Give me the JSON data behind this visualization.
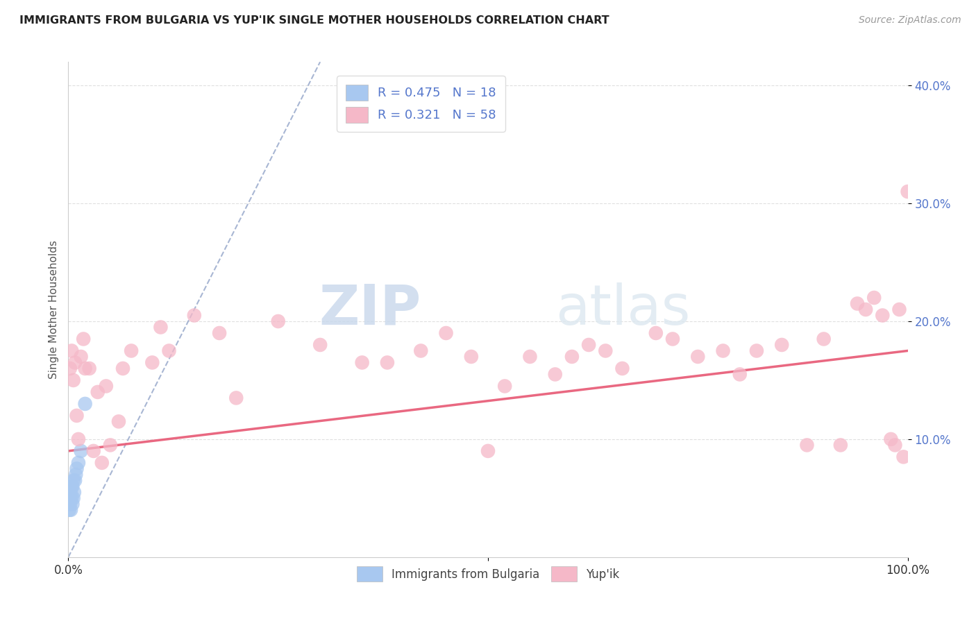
{
  "title": "IMMIGRANTS FROM BULGARIA VS YUP'IK SINGLE MOTHER HOUSEHOLDS CORRELATION CHART",
  "source_text": "Source: ZipAtlas.com",
  "ylabel": "Single Mother Households",
  "xlim": [
    0,
    1.0
  ],
  "ylim": [
    0,
    0.42
  ],
  "xtick_positions": [
    0.0,
    0.5,
    1.0
  ],
  "xtick_labels": [
    "0.0%",
    "",
    "100.0%"
  ],
  "ytick_positions": [
    0.1,
    0.2,
    0.3,
    0.4
  ],
  "ytick_labels": [
    "10.0%",
    "20.0%",
    "30.0%",
    "40.0%"
  ],
  "watermark_zip": "ZIP",
  "watermark_atlas": "atlas",
  "legend_r1": "R = 0.475",
  "legend_n1": "N = 18",
  "legend_r2": "R = 0.321",
  "legend_n2": "N = 58",
  "series1_color": "#a8c8f0",
  "series2_color": "#f5b8c8",
  "trend1_color": "#99aacc",
  "trend2_color": "#e8607a",
  "background_color": "#ffffff",
  "bulgaria_x": [
    0.001,
    0.002,
    0.002,
    0.003,
    0.003,
    0.004,
    0.004,
    0.005,
    0.005,
    0.006,
    0.006,
    0.007,
    0.008,
    0.009,
    0.01,
    0.012,
    0.015,
    0.02
  ],
  "bulgaria_y": [
    0.04,
    0.045,
    0.05,
    0.04,
    0.055,
    0.05,
    0.06,
    0.045,
    0.06,
    0.05,
    0.065,
    0.055,
    0.065,
    0.07,
    0.075,
    0.08,
    0.09,
    0.13
  ],
  "yupik_x": [
    0.002,
    0.004,
    0.006,
    0.008,
    0.01,
    0.012,
    0.015,
    0.018,
    0.02,
    0.025,
    0.03,
    0.035,
    0.04,
    0.045,
    0.05,
    0.06,
    0.065,
    0.075,
    0.1,
    0.11,
    0.12,
    0.15,
    0.18,
    0.2,
    0.25,
    0.3,
    0.35,
    0.38,
    0.42,
    0.45,
    0.48,
    0.5,
    0.52,
    0.55,
    0.58,
    0.6,
    0.62,
    0.64,
    0.66,
    0.7,
    0.72,
    0.75,
    0.78,
    0.8,
    0.82,
    0.85,
    0.88,
    0.9,
    0.92,
    0.94,
    0.95,
    0.96,
    0.97,
    0.98,
    0.985,
    0.99,
    0.995,
    1.0
  ],
  "yupik_y": [
    0.16,
    0.175,
    0.15,
    0.165,
    0.12,
    0.1,
    0.17,
    0.185,
    0.16,
    0.16,
    0.09,
    0.14,
    0.08,
    0.145,
    0.095,
    0.115,
    0.16,
    0.175,
    0.165,
    0.195,
    0.175,
    0.205,
    0.19,
    0.135,
    0.2,
    0.18,
    0.165,
    0.165,
    0.175,
    0.19,
    0.17,
    0.09,
    0.145,
    0.17,
    0.155,
    0.17,
    0.18,
    0.175,
    0.16,
    0.19,
    0.185,
    0.17,
    0.175,
    0.155,
    0.175,
    0.18,
    0.095,
    0.185,
    0.095,
    0.215,
    0.21,
    0.22,
    0.205,
    0.1,
    0.095,
    0.21,
    0.085,
    0.31
  ],
  "trend1_x0": 0.0,
  "trend1_y0": 0.0,
  "trend1_x1": 0.3,
  "trend1_y1": 0.42,
  "trend2_x0": 0.0,
  "trend2_y0": 0.09,
  "trend2_x1": 1.0,
  "trend2_y1": 0.175,
  "grid_color": "#dddddd",
  "ytick_color": "#5577cc",
  "xtick_color": "#333333"
}
